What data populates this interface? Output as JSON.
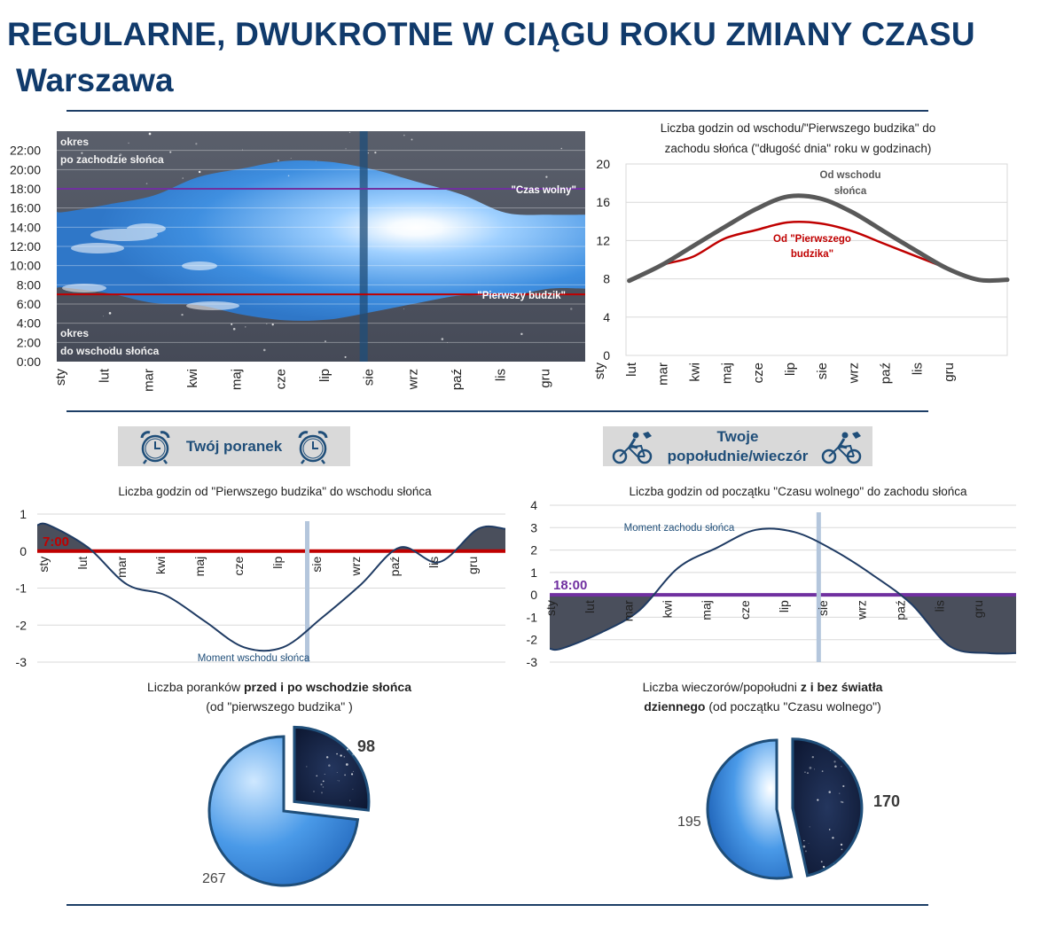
{
  "page": {
    "title": "REGULARNE, DWUKROTNE W CIĄGU ROKU ZMIANY CZASU",
    "subtitle": "Warszawa"
  },
  "colors": {
    "navy": "#103a6b",
    "purple": "#7030a0",
    "red": "#c00000",
    "night": "#4a4f5c",
    "sky": "#3f8fe0",
    "grey_line": "#595959",
    "dark_red_line": "#c00000",
    "blue_curve": "#1f3b63",
    "grey_marker": "#b4c6dc"
  },
  "months": [
    "sty",
    "lut",
    "mar",
    "kwi",
    "maj",
    "cze",
    "lip",
    "sie",
    "wrz",
    "paź",
    "lis",
    "gru"
  ],
  "banners": {
    "morning": "Twój poranek",
    "evening_line1": "Twoje",
    "evening_line2": "popołudnie/wieczór",
    "morning_icon": "alarm-clock-icon",
    "evening_icon": "cyclists-icon"
  },
  "pies": {
    "morning_caption_pre": "Liczba poranków ",
    "morning_caption_bold": "przed i po wschodzie słońca",
    "morning_caption_line2": "(od \"pierwszego budzika\" )",
    "evening_caption_pre": "Liczba wieczorów/popołudni ",
    "evening_caption_bold": "z i bez światła",
    "evening_caption_line2_bold": "dziennego",
    "evening_caption_line2": " (od początku \"Czasu wolnego\")",
    "morning_dark": "98",
    "morning_light": "267",
    "evening_light": "195",
    "evening_dark": "170"
  },
  "chart_data": [
    {
      "type": "area",
      "title": "",
      "yticks": [
        "0:00",
        "2:00",
        "4:00",
        "6:00",
        "8:00",
        "10:00",
        "12:00",
        "14:00",
        "16:00",
        "18:00",
        "20:00",
        "22:00"
      ],
      "ylim": [
        0,
        24
      ],
      "categories": [
        "sty",
        "lut",
        "mar",
        "kwi",
        "maj",
        "cze",
        "lip",
        "sie",
        "wrz",
        "paź",
        "lis",
        "gru"
      ],
      "labels": {
        "after_sunset": [
          "okres",
          "po zachodzie słońca"
        ],
        "before_sunrise": [
          "okres",
          "do wschodu słońca"
        ],
        "free_time": "\"Czas wolny\"",
        "first_alarm": "\"Pierwszy budzik\""
      },
      "free_time_hour": 18,
      "first_alarm_hour": 7,
      "sunset_hours": [
        15.6,
        16.4,
        17.3,
        19.2,
        20.1,
        20.9,
        20.8,
        20.0,
        18.7,
        17.4,
        15.5,
        15.3
      ],
      "sunrise_hours": [
        7.7,
        7.1,
        6.1,
        5.9,
        4.9,
        4.3,
        4.4,
        5.2,
        6.1,
        6.9,
        6.8,
        7.6
      ],
      "marker_month": "sie"
    },
    {
      "type": "line",
      "title": "Liczba godzin od wschodu/\"Pierwszego budzika\" do zachodu słońca (\"długość dnia\" roku w godzinach)",
      "title_line1": "Liczba godzin od wschodu/\"Pierwszego budzika\" do",
      "title_line2": "zachodu słońca (\"długość dnia\" roku w godzinach)",
      "categories": [
        "sty",
        "lut",
        "mar",
        "kwi",
        "maj",
        "cze",
        "lip",
        "sie",
        "wrz",
        "paź",
        "lis",
        "gru"
      ],
      "ylim": [
        0,
        20
      ],
      "yticks": [
        "0",
        "4",
        "8",
        "12",
        "16",
        "20"
      ],
      "series": [
        {
          "name": "Od wschodu słońca",
          "name_line1": "Od wschodu",
          "name_line2": "słońca",
          "values": [
            7.8,
            9.4,
            11.4,
            13.4,
            15.3,
            16.6,
            16.4,
            15.0,
            13.0,
            11.0,
            9.1,
            7.9
          ]
        },
        {
          "name": "Od \"Pierwszego budzika\"",
          "name_line1": "Od \"Pierwszego",
          "name_line2": "budzika\"",
          "values": [
            7.8,
            9.4,
            10.3,
            12.2,
            13.1,
            13.9,
            13.8,
            13.0,
            11.7,
            10.4,
            9.1,
            7.9
          ]
        }
      ]
    },
    {
      "type": "area",
      "title": "Liczba godzin od \"Pierwszego budzika\" do wschodu słońca",
      "categories": [
        "sty",
        "lut",
        "mar",
        "kwi",
        "maj",
        "cze",
        "lip",
        "sie",
        "wrz",
        "paź",
        "lis",
        "gru"
      ],
      "ylim": [
        -3,
        1
      ],
      "yticks": [
        "1",
        "0",
        "-1",
        "-2",
        "-3"
      ],
      "reference_label": "7:00",
      "series_label": "Moment wschodu słońca",
      "values": [
        0.7,
        0.1,
        -0.9,
        -1.2,
        -1.9,
        -2.6,
        -2.6,
        -1.8,
        -0.9,
        0.1,
        -0.3,
        0.6
      ]
    },
    {
      "type": "area",
      "title": "Liczba godzin od początku \"Czasu wolnego\" do zachodu słońca",
      "categories": [
        "sty",
        "lut",
        "mar",
        "kwi",
        "maj",
        "cze",
        "lip",
        "sie",
        "wrz",
        "paź",
        "lis",
        "gru"
      ],
      "ylim": [
        -3,
        4
      ],
      "yticks": [
        "4",
        "3",
        "2",
        "1",
        "0",
        "-1",
        "-2",
        "-3"
      ],
      "reference_label": "18:00",
      "series_label": "Moment zachodu słońca",
      "values": [
        -2.4,
        -1.7,
        -0.7,
        1.2,
        2.1,
        2.9,
        2.8,
        2.0,
        0.9,
        -0.4,
        -2.3,
        -2.6
      ]
    }
  ]
}
